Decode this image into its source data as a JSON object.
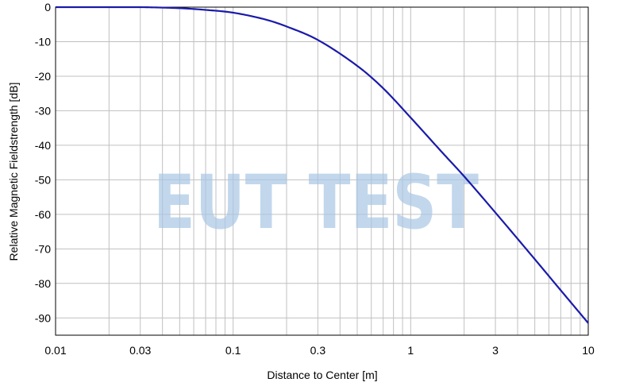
{
  "chart_data": {
    "type": "line",
    "xlabel": "Distance to Center [m]",
    "ylabel": "Relative Magnetic Fieldstrength [dB]",
    "watermark": "EUT TEST",
    "x_scale": "log",
    "xlim": [
      0.01,
      10
    ],
    "ylim": [
      -95,
      0
    ],
    "grid": true,
    "x_ticks": [
      0.01,
      0.03,
      0.1,
      0.3,
      1,
      3,
      10
    ],
    "x_tick_labels": [
      "0.01",
      "0.03",
      "0.1",
      "0.3",
      "1",
      "3",
      "10"
    ],
    "y_ticks": [
      0,
      -10,
      -20,
      -30,
      -40,
      -50,
      -60,
      -70,
      -80,
      -90
    ],
    "y_tick_labels": [
      "0",
      "-10",
      "-20",
      "-30",
      "-40",
      "-50",
      "-60",
      "-70",
      "-80",
      "-90"
    ],
    "colors": {
      "line": "#1a1aaa",
      "grid": "#c0c0c0",
      "watermark": "#a9c7e4"
    },
    "series": [
      {
        "x": [
          0.01,
          0.02,
          0.03,
          0.05,
          0.07,
          0.1,
          0.15,
          0.2,
          0.3,
          0.5,
          0.7,
          1,
          1.5,
          2,
          3,
          5,
          7,
          10
        ],
        "y": [
          0,
          0,
          0,
          -0.3,
          -0.8,
          -1.6,
          -3.5,
          -5.6,
          -9.5,
          -17,
          -23.5,
          -32,
          -42,
          -49,
          -59.5,
          -73,
          -82,
          -91.5
        ]
      }
    ]
  }
}
